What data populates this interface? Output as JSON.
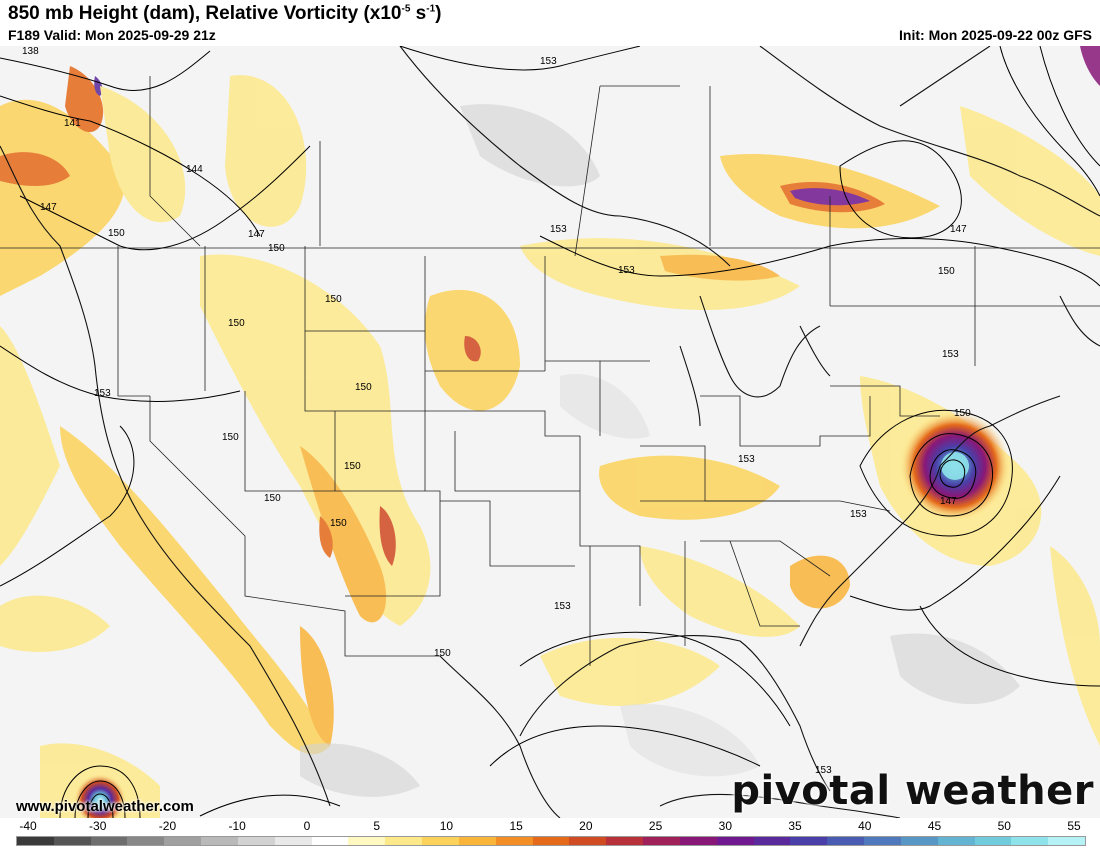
{
  "header": {
    "title_main": "850 mb Height (dam), Relative Vorticity (x10",
    "title_exp": "-5",
    "title_mid": " s",
    "title_exp2": "-1",
    "title_end": ")",
    "valid": "F189 Valid: Mon 2025-09-29 21z",
    "init": "Init: Mon 2025-09-22 00z GFS"
  },
  "map": {
    "contour_labels": [
      "138",
      "141",
      "144",
      "147",
      "150",
      "153"
    ],
    "hurricane_label": "147"
  },
  "footer": {
    "website": "www.pivotalweather.com",
    "brand": "pivotal weather"
  },
  "colorbar": {
    "ticks": [
      "-40",
      "-30",
      "-20",
      "-10",
      "0",
      "5",
      "10",
      "15",
      "20",
      "25",
      "30",
      "35",
      "40",
      "45",
      "50",
      "55"
    ],
    "colors": [
      "#3a3a3a",
      "#555555",
      "#6e6e6e",
      "#888888",
      "#a0a0a0",
      "#b9b9b9",
      "#d2d2d2",
      "#e8e8e8",
      "#ffffff",
      "#fff8c0",
      "#fde98a",
      "#fcd35a",
      "#f9b43a",
      "#f28e25",
      "#e46a1a",
      "#d04a22",
      "#b8303a",
      "#a0205a",
      "#881878",
      "#701890",
      "#5a2a9c",
      "#4a3fa8",
      "#4a5cb2",
      "#5078bc",
      "#5896c6",
      "#62b4d2",
      "#70ccdc",
      "#8ee2ea",
      "#b4f2f6"
    ]
  }
}
